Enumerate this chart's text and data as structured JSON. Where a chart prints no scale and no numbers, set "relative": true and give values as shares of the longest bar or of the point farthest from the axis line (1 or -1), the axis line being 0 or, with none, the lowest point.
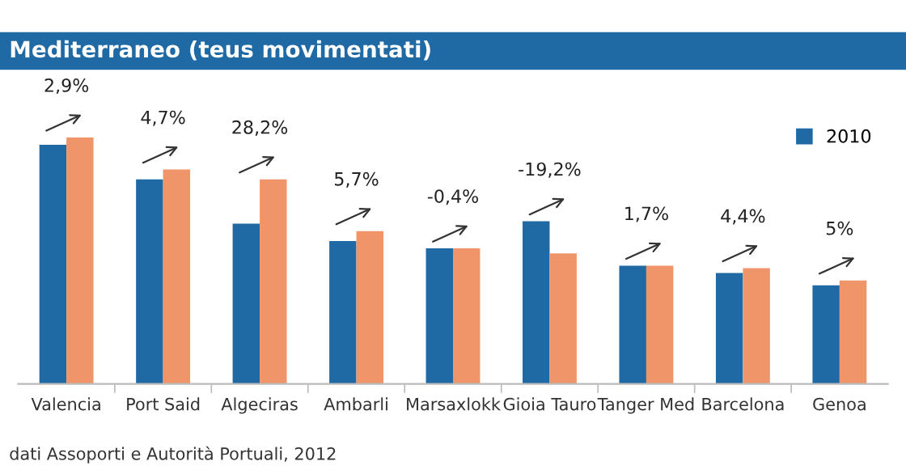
{
  "chart_data": {
    "type": "bar",
    "relative": true,
    "title": "Mediterraneo (teus movimentati)",
    "categories": [
      "Valencia",
      "Port Said",
      "Algeciras",
      "Ambarli",
      "Marsaxlokk",
      "Gioia Tauro",
      "Tanger Med",
      "Barcelona",
      "Genoa"
    ],
    "series": [
      {
        "name": "2010",
        "color": "#1f6aa5",
        "values": [
          0.97,
          0.83,
          0.65,
          0.58,
          0.55,
          0.66,
          0.48,
          0.45,
          0.4
        ]
      },
      {
        "color": "#f0956a",
        "values": [
          1.0,
          0.87,
          0.83,
          0.62,
          0.55,
          0.53,
          0.48,
          0.47,
          0.42
        ]
      }
    ],
    "annotations": [
      {
        "text": "2,9%",
        "x": "Valencia",
        "y": 1.0
      },
      {
        "text": "4,7%",
        "x": "Port Said",
        "y": 0.87
      },
      {
        "text": "28,2%",
        "x": "Algeciras",
        "y": 0.83
      },
      {
        "text": "5,7%",
        "x": "Ambarli",
        "y": 0.62
      },
      {
        "text": "-0,4%",
        "x": "Marsaxlokk",
        "y": 0.55
      },
      {
        "text": "-19,2%",
        "x": "Gioia Tauro",
        "y": 0.66
      },
      {
        "text": "1,7%",
        "x": "Tanger Med",
        "y": 0.48
      },
      {
        "text": "4,4%",
        "x": "Barcelona",
        "y": 0.47
      },
      {
        "text": "5%",
        "x": "Genoa",
        "y": 0.42
      },
      "dati Assoporti e Autorità Portuali, 2012"
    ],
    "legend": "top right",
    "grid": false
  }
}
